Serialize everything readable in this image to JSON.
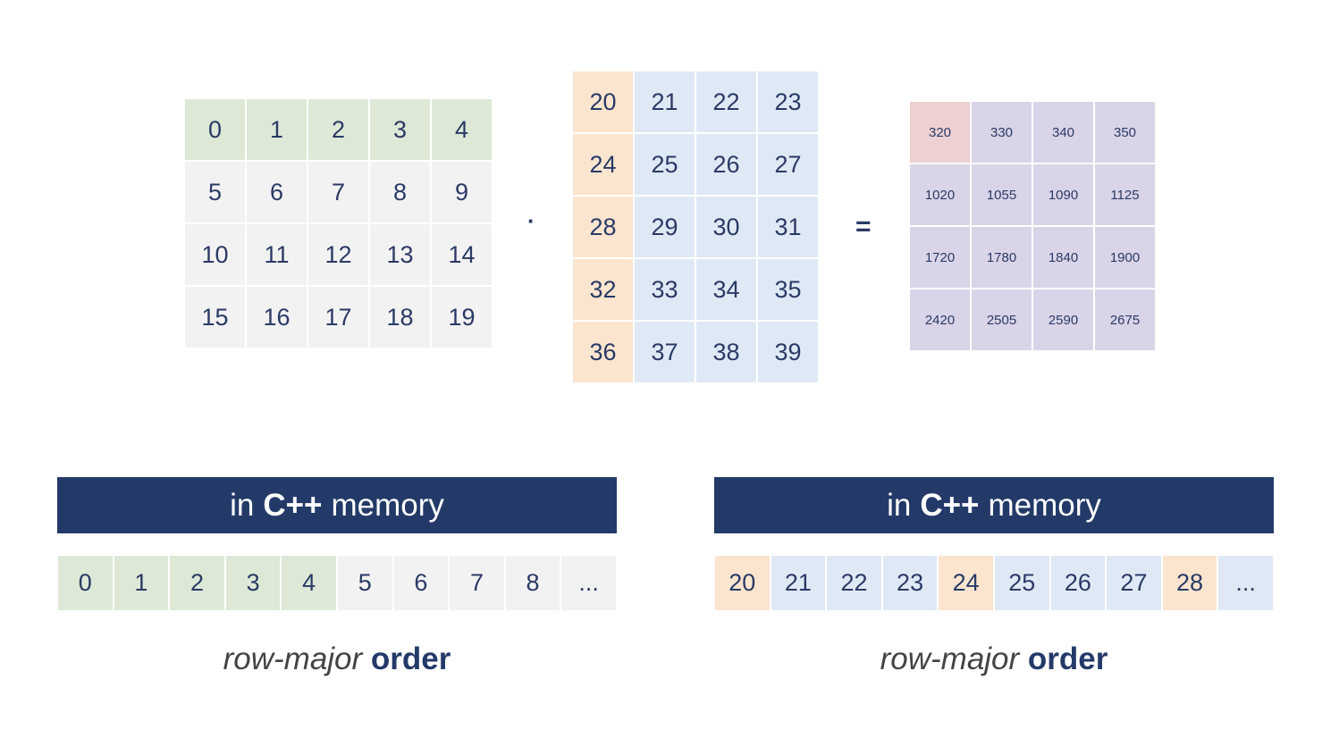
{
  "colors": {
    "green": "#dde9d6",
    "gray": "#f2f2f2",
    "orange": "#fbe5cf",
    "blue": "#dfe9f5",
    "red": "#ecd0d2",
    "purple": "#dad4e8",
    "navy": "#233a69",
    "text": "#2a3a66"
  },
  "matrix_a": {
    "rows": [
      [
        {
          "v": "0",
          "c": "green"
        },
        {
          "v": "1",
          "c": "green"
        },
        {
          "v": "2",
          "c": "green"
        },
        {
          "v": "3",
          "c": "green"
        },
        {
          "v": "4",
          "c": "green"
        }
      ],
      [
        {
          "v": "5",
          "c": "gray"
        },
        {
          "v": "6",
          "c": "gray"
        },
        {
          "v": "7",
          "c": "gray"
        },
        {
          "v": "8",
          "c": "gray"
        },
        {
          "v": "9",
          "c": "gray"
        }
      ],
      [
        {
          "v": "10",
          "c": "gray"
        },
        {
          "v": "11",
          "c": "gray"
        },
        {
          "v": "12",
          "c": "gray"
        },
        {
          "v": "13",
          "c": "gray"
        },
        {
          "v": "14",
          "c": "gray"
        }
      ],
      [
        {
          "v": "15",
          "c": "gray"
        },
        {
          "v": "16",
          "c": "gray"
        },
        {
          "v": "17",
          "c": "gray"
        },
        {
          "v": "18",
          "c": "gray"
        },
        {
          "v": "19",
          "c": "gray"
        }
      ]
    ]
  },
  "operator_dot": "·",
  "matrix_b": {
    "rows": [
      [
        {
          "v": "20",
          "c": "orange"
        },
        {
          "v": "21",
          "c": "blue"
        },
        {
          "v": "22",
          "c": "blue"
        },
        {
          "v": "23",
          "c": "blue"
        }
      ],
      [
        {
          "v": "24",
          "c": "orange"
        },
        {
          "v": "25",
          "c": "blue"
        },
        {
          "v": "26",
          "c": "blue"
        },
        {
          "v": "27",
          "c": "blue"
        }
      ],
      [
        {
          "v": "28",
          "c": "orange"
        },
        {
          "v": "29",
          "c": "blue"
        },
        {
          "v": "30",
          "c": "blue"
        },
        {
          "v": "31",
          "c": "blue"
        }
      ],
      [
        {
          "v": "32",
          "c": "orange"
        },
        {
          "v": "33",
          "c": "blue"
        },
        {
          "v": "34",
          "c": "blue"
        },
        {
          "v": "35",
          "c": "blue"
        }
      ],
      [
        {
          "v": "36",
          "c": "orange"
        },
        {
          "v": "37",
          "c": "blue"
        },
        {
          "v": "38",
          "c": "blue"
        },
        {
          "v": "39",
          "c": "blue"
        }
      ]
    ]
  },
  "operator_eq": "=",
  "matrix_c": {
    "rows": [
      [
        {
          "v": "320",
          "c": "red"
        },
        {
          "v": "330",
          "c": "purple"
        },
        {
          "v": "340",
          "c": "purple"
        },
        {
          "v": "350",
          "c": "purple"
        }
      ],
      [
        {
          "v": "1020",
          "c": "purple"
        },
        {
          "v": "1055",
          "c": "purple"
        },
        {
          "v": "1090",
          "c": "purple"
        },
        {
          "v": "1125",
          "c": "purple"
        }
      ],
      [
        {
          "v": "1720",
          "c": "purple"
        },
        {
          "v": "1780",
          "c": "purple"
        },
        {
          "v": "1840",
          "c": "purple"
        },
        {
          "v": "1900",
          "c": "purple"
        }
      ],
      [
        {
          "v": "2420",
          "c": "purple"
        },
        {
          "v": "2505",
          "c": "purple"
        },
        {
          "v": "2590",
          "c": "purple"
        },
        {
          "v": "2675",
          "c": "purple"
        }
      ]
    ]
  },
  "memory_left": {
    "header": {
      "pre": "in",
      "bold": "C++",
      "post": "memory"
    },
    "cells": [
      {
        "v": "0",
        "c": "green"
      },
      {
        "v": "1",
        "c": "green"
      },
      {
        "v": "2",
        "c": "green"
      },
      {
        "v": "3",
        "c": "green"
      },
      {
        "v": "4",
        "c": "green"
      },
      {
        "v": "5",
        "c": "gray"
      },
      {
        "v": "6",
        "c": "gray"
      },
      {
        "v": "7",
        "c": "gray"
      },
      {
        "v": "8",
        "c": "gray"
      },
      {
        "v": "...",
        "c": "gray"
      }
    ],
    "caption": {
      "italic": "row-major",
      "bold": "order"
    }
  },
  "memory_right": {
    "header": {
      "pre": "in",
      "bold": "C++",
      "post": "memory"
    },
    "cells": [
      {
        "v": "20",
        "c": "orange"
      },
      {
        "v": "21",
        "c": "blue"
      },
      {
        "v": "22",
        "c": "blue"
      },
      {
        "v": "23",
        "c": "blue"
      },
      {
        "v": "24",
        "c": "orange"
      },
      {
        "v": "25",
        "c": "blue"
      },
      {
        "v": "26",
        "c": "blue"
      },
      {
        "v": "27",
        "c": "blue"
      },
      {
        "v": "28",
        "c": "orange"
      },
      {
        "v": "...",
        "c": "blue"
      }
    ],
    "caption": {
      "italic": "row-major",
      "bold": "order"
    }
  }
}
